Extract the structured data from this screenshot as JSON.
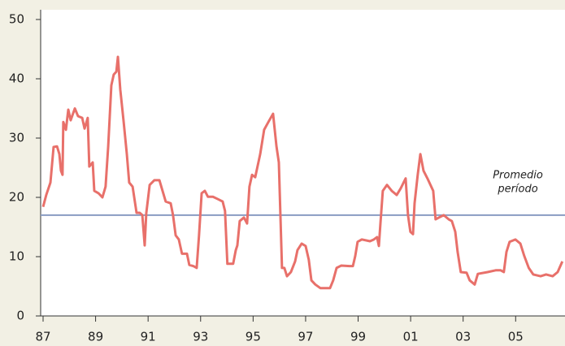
{
  "chart_data": {
    "type": "line",
    "x": [
      1987.0,
      1987.12,
      1987.28,
      1987.4,
      1987.53,
      1987.62,
      1987.68,
      1987.74,
      1987.77,
      1987.87,
      1987.96,
      1988.05,
      1988.21,
      1988.33,
      1988.49,
      1988.58,
      1988.7,
      1988.76,
      1988.89,
      1988.95,
      1989.11,
      1989.26,
      1989.38,
      1989.48,
      1989.6,
      1989.69,
      1989.79,
      1989.85,
      1989.94,
      1990.07,
      1990.19,
      1990.28,
      1990.41,
      1990.56,
      1990.68,
      1990.78,
      1990.87,
      1990.93,
      1991.06,
      1991.24,
      1991.43,
      1991.55,
      1991.67,
      1991.86,
      1991.95,
      1992.05,
      1992.17,
      1992.29,
      1992.48,
      1992.57,
      1992.73,
      1992.85,
      1992.94,
      1993.04,
      1993.16,
      1993.28,
      1993.47,
      1993.66,
      1993.84,
      1993.93,
      1994.02,
      1994.24,
      1994.34,
      1994.4,
      1994.49,
      1994.65,
      1994.77,
      1994.86,
      1994.96,
      1995.08,
      1995.27,
      1995.42,
      1995.58,
      1995.76,
      1995.89,
      1995.98,
      1996.1,
      1996.19,
      1996.29,
      1996.44,
      1996.6,
      1996.69,
      1996.85,
      1997.0,
      1997.12,
      1997.22,
      1997.37,
      1997.56,
      1997.74,
      1997.93,
      1998.05,
      1998.18,
      1998.36,
      1998.67,
      1998.8,
      1998.89,
      1998.98,
      1999.14,
      1999.45,
      1999.6,
      1999.72,
      1999.79,
      1999.85,
      1999.94,
      2000.1,
      2000.28,
      2000.47,
      2000.62,
      2000.81,
      2000.9,
      2000.99,
      2001.09,
      2001.15,
      2001.27,
      2001.37,
      2001.49,
      2001.64,
      2001.86,
      2001.95,
      2002.08,
      2002.26,
      2002.45,
      2002.57,
      2002.7,
      2002.79,
      2002.91,
      2003.13,
      2003.25,
      2003.44,
      2003.56,
      2003.93,
      2004.24,
      2004.43,
      2004.55,
      2004.65,
      2004.77,
      2004.99,
      2005.18,
      2005.33,
      2005.5,
      2005.67,
      2005.95,
      2006.16,
      2006.41,
      2006.6,
      2006.78
    ],
    "series": [
      {
        "color": "#e8706a",
        "values": [
          18.4,
          20.4,
          22.5,
          28.5,
          28.6,
          27.3,
          24.5,
          23.8,
          32.7,
          31.4,
          34.8,
          33.0,
          35.0,
          33.7,
          33.4,
          31.6,
          33.4,
          25.2,
          25.9,
          21.1,
          20.7,
          20.0,
          21.8,
          28.6,
          38.9,
          40.7,
          41.2,
          43.7,
          38.2,
          32.7,
          27.3,
          22.5,
          21.8,
          17.4,
          17.4,
          17.0,
          11.9,
          17.3,
          22.1,
          22.9,
          22.9,
          21.1,
          19.3,
          19.0,
          17.0,
          13.6,
          12.9,
          10.5,
          10.5,
          8.6,
          8.4,
          8.1,
          13.6,
          20.7,
          21.1,
          20.1,
          20.1,
          19.7,
          19.3,
          17.7,
          8.8,
          8.8,
          11.1,
          11.9,
          16.0,
          16.6,
          15.6,
          21.8,
          23.8,
          23.4,
          27.3,
          31.4,
          32.7,
          34.1,
          28.6,
          25.9,
          8.1,
          8.1,
          6.7,
          7.4,
          9.2,
          11.1,
          12.2,
          11.8,
          9.5,
          6.0,
          5.3,
          4.7,
          4.7,
          4.7,
          6.0,
          8.1,
          8.5,
          8.4,
          8.4,
          10.1,
          12.5,
          12.9,
          12.6,
          12.9,
          13.3,
          11.8,
          15.6,
          21.1,
          22.1,
          21.1,
          20.4,
          21.5,
          23.2,
          17.0,
          14.2,
          13.8,
          19.0,
          23.8,
          27.3,
          24.5,
          23.2,
          21.1,
          16.3,
          16.6,
          17.0,
          16.3,
          16.0,
          14.2,
          10.8,
          7.4,
          7.3,
          6.0,
          5.3,
          7.1,
          7.4,
          7.7,
          7.7,
          7.4,
          10.8,
          12.5,
          12.9,
          12.2,
          10.1,
          8.1,
          7.0,
          6.7,
          7.0,
          6.7,
          7.4,
          9.2
        ]
      }
    ],
    "average": {
      "value": 17,
      "color": "#8a9cc2",
      "label": [
        "Promedio",
        "período"
      ]
    },
    "xlim": [
      1987,
      2006.88
    ],
    "xticks": [
      {
        "value": 1987,
        "label": "87"
      },
      {
        "value": 1989,
        "label": "89"
      },
      {
        "value": 1991,
        "label": "91"
      },
      {
        "value": 1993,
        "label": "93"
      },
      {
        "value": 1995,
        "label": "95"
      },
      {
        "value": 1997,
        "label": "97"
      },
      {
        "value": 1999,
        "label": "99"
      },
      {
        "value": 2001,
        "label": "01"
      },
      {
        "value": 2003,
        "label": "03"
      },
      {
        "value": 2005,
        "label": "05"
      }
    ],
    "ylim": [
      0,
      50
    ],
    "yticks": [
      0,
      10,
      20,
      30,
      40,
      50
    ]
  }
}
